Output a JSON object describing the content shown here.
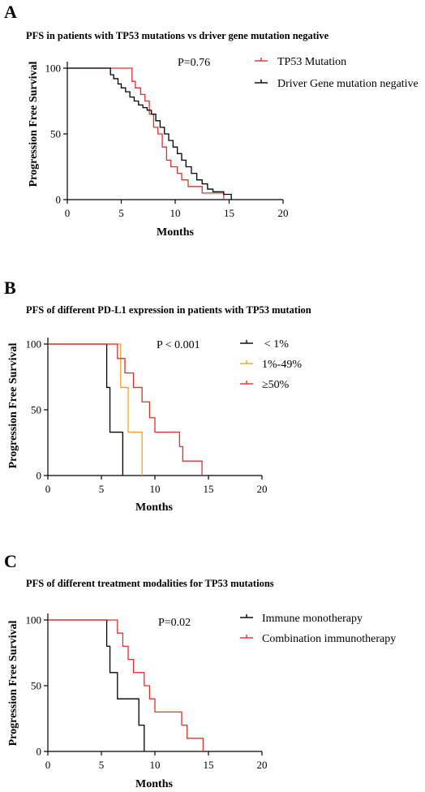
{
  "colors": {
    "black": "#000000",
    "red": "#e03030",
    "orange": "#f0a030"
  },
  "chart_data": [
    {
      "type": "line",
      "panel": "A",
      "title": "PFS in patients with TP53 mutations vs driver gene mutation negative",
      "xlabel": "Months",
      "ylabel": "Progression Free Survival",
      "xlim": [
        0,
        20
      ],
      "ylim": [
        0,
        100
      ],
      "xticks": [
        0,
        5,
        10,
        15,
        20
      ],
      "yticks": [
        0,
        50,
        100
      ],
      "xticklabels": [
        "0",
        "5",
        "10",
        "15",
        "20"
      ],
      "yticklabels": [
        "0",
        "50",
        "100"
      ],
      "annotation": "P=0.76",
      "legend_position": "top-right",
      "series": [
        {
          "name": "TP53 Mutation",
          "color": "#e03030",
          "step": true,
          "x": [
            0,
            5.4,
            6.0,
            6.3,
            6.8,
            7.2,
            7.6,
            8.0,
            8.4,
            8.8,
            9.2,
            9.6,
            10.2,
            10.6,
            11.2,
            12.5,
            14.5
          ],
          "y": [
            100,
            100,
            90,
            85,
            80,
            75,
            65,
            55,
            50,
            40,
            30,
            25,
            20,
            15,
            10,
            5,
            0
          ]
        },
        {
          "name": "Driver Gene mutation negative",
          "color": "#000000",
          "step": true,
          "x": [
            0,
            4.0,
            4.3,
            4.7,
            5.0,
            5.4,
            5.8,
            6.2,
            6.6,
            7.0,
            7.4,
            7.8,
            8.2,
            8.6,
            9.0,
            9.4,
            9.8,
            10.2,
            10.6,
            11.0,
            11.5,
            12.0,
            12.5,
            13.0,
            13.5,
            14.5,
            15.2
          ],
          "y": [
            100,
            95,
            92,
            88,
            85,
            82,
            78,
            75,
            72,
            70,
            68,
            65,
            60,
            55,
            50,
            45,
            40,
            35,
            30,
            25,
            20,
            15,
            12,
            8,
            6,
            4,
            0
          ]
        }
      ]
    },
    {
      "type": "line",
      "panel": "B",
      "title": "PFS of different PD-L1 expression in patients with TP53 mutation",
      "xlabel": "Months",
      "ylabel": "Progression Free Survival",
      "xlim": [
        0,
        20
      ],
      "ylim": [
        0,
        100
      ],
      "xticks": [
        0,
        5,
        10,
        15,
        20
      ],
      "yticks": [
        0,
        50,
        100
      ],
      "xticklabels": [
        "0",
        "5",
        "10",
        "15",
        "20"
      ],
      "yticklabels": [
        "0",
        "50",
        "100"
      ],
      "annotation": "P < 0.001",
      "legend_position": "top-right",
      "series": [
        {
          "name": " < 1%",
          "color": "#000000",
          "step": true,
          "x": [
            0,
            5.5,
            5.8,
            7.0
          ],
          "y": [
            100,
            67,
            33,
            0
          ]
        },
        {
          "name": "1%-49%",
          "color": "#f0a030",
          "step": true,
          "x": [
            0,
            6.8,
            7.5,
            8.8
          ],
          "y": [
            100,
            67,
            33,
            0
          ]
        },
        {
          "name": "≥50%",
          "color": "#e03030",
          "step": true,
          "x": [
            0,
            6.5,
            7.2,
            8.0,
            8.8,
            9.5,
            10.0,
            12.3,
            12.6,
            14.4
          ],
          "y": [
            100,
            89,
            78,
            67,
            56,
            44,
            33,
            22,
            11,
            0
          ]
        }
      ]
    },
    {
      "type": "line",
      "panel": "C",
      "title": "PFS of different treatment modalities for TP53 mutations",
      "xlabel": "Months",
      "ylabel": "Progression Free Survival",
      "xlim": [
        0,
        20
      ],
      "ylim": [
        0,
        100
      ],
      "xticks": [
        0,
        5,
        10,
        15,
        20
      ],
      "yticks": [
        0,
        50,
        100
      ],
      "xticklabels": [
        "0",
        "5",
        "10",
        "15",
        "20"
      ],
      "yticklabels": [
        "0",
        "50",
        "100"
      ],
      "annotation": "P=0.02",
      "legend_position": "top-right",
      "series": [
        {
          "name": "Immune monotherapy",
          "color": "#000000",
          "step": true,
          "x": [
            0,
            5.5,
            5.8,
            6.5,
            8.5,
            9.0
          ],
          "y": [
            100,
            80,
            60,
            40,
            20,
            0
          ]
        },
        {
          "name": "Combination immunotherapy",
          "color": "#e03030",
          "step": true,
          "x": [
            0,
            6.5,
            7.0,
            7.5,
            8.0,
            9.0,
            9.5,
            10.0,
            12.5,
            13.0,
            14.5
          ],
          "y": [
            100,
            90,
            80,
            70,
            60,
            50,
            40,
            30,
            20,
            10,
            0
          ]
        }
      ]
    }
  ]
}
